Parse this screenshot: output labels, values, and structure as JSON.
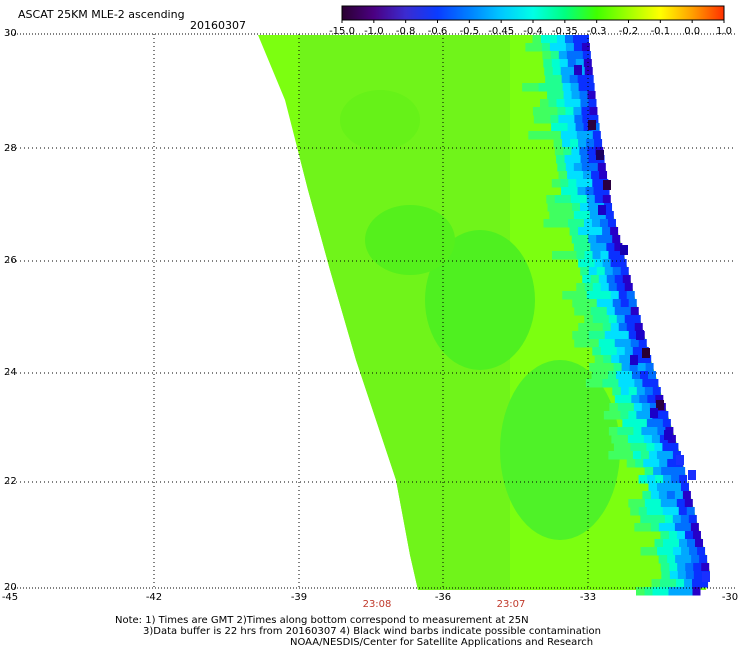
{
  "header": {
    "title": "ASCAT 25KM MLE-2 ascending",
    "date": "20160307"
  },
  "colorbar": {
    "labels": [
      "-15.0",
      "-1.0",
      "-0.8",
      "-0.6",
      "-0.5",
      "-0.45",
      "-0.4",
      "-0.35",
      "-0.3",
      "-0.2",
      "-0.1",
      "0.0",
      "1.0"
    ],
    "colors": [
      "#2a0030",
      "#4b0082",
      "#3b2bd0",
      "#0a3cff",
      "#0080ff",
      "#00c8ff",
      "#00ffe6",
      "#00ff80",
      "#40ff00",
      "#a0ff00",
      "#ffff00",
      "#ffa000",
      "#ff3000"
    ]
  },
  "axes": {
    "x_labels": [
      "-45",
      "-42",
      "-39",
      "-36",
      "-33",
      "-30"
    ],
    "y_labels": [
      "30",
      "28",
      "26",
      "24",
      "22",
      "20"
    ],
    "time_labels": [
      "23:08",
      "23:07"
    ]
  },
  "notes": [
    "Note: 1) Times are GMT 2)Times along bottom correspond to measurement at 25N",
    "3)Data buffer is 22 hrs from 20160307 4) Black wind barbs indicate possible contamination",
    "NOAA/NESDIS/Center for Satellite Applications and Research"
  ]
}
